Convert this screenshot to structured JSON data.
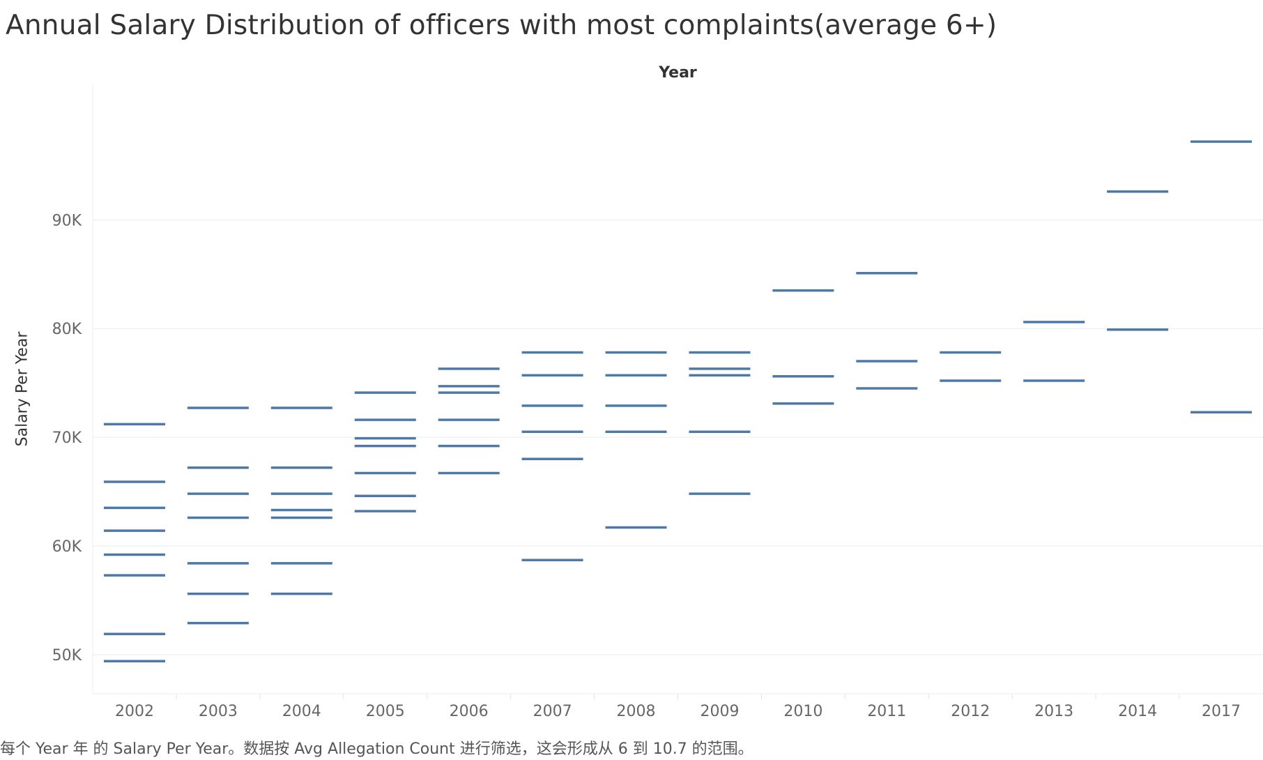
{
  "chart_data": {
    "type": "scatter",
    "mark": "horizontal dash",
    "title": "Annual Salary Distribution of officers with most complaints(average 6+)",
    "column_header": "Year",
    "ylabel": "Salary Per Year",
    "categories": [
      "2002",
      "2003",
      "2004",
      "2005",
      "2006",
      "2007",
      "2008",
      "2009",
      "2010",
      "2011",
      "2012",
      "2013",
      "2014",
      "2017"
    ],
    "y_ticks": [
      50000,
      60000,
      70000,
      80000,
      90000
    ],
    "y_tick_labels": [
      "50K",
      "60K",
      "70K",
      "80K",
      "90K"
    ],
    "ylim": [
      46400,
      102400
    ],
    "grid": true,
    "mark_color": "#4E79A7",
    "caption": "每个 Year 年 的 Salary Per Year。数据按 Avg Allegation Count 进行筛选，这会形成从 6 到 10.7 的范围。",
    "series": [
      {
        "year": "2002",
        "values": [
          71200,
          65900,
          63500,
          61400,
          59200,
          57300,
          51900,
          49400
        ]
      },
      {
        "year": "2003",
        "values": [
          72700,
          67200,
          64800,
          62600,
          58400,
          55600,
          52900
        ]
      },
      {
        "year": "2004",
        "values": [
          72700,
          67200,
          64800,
          63300,
          62600,
          58400,
          55600
        ]
      },
      {
        "year": "2005",
        "values": [
          74100,
          71600,
          69900,
          69200,
          66700,
          64600,
          63200
        ]
      },
      {
        "year": "2006",
        "values": [
          76300,
          74700,
          74100,
          71600,
          69200,
          66700
        ]
      },
      {
        "year": "2007",
        "values": [
          77800,
          75700,
          72900,
          70500,
          68000,
          58700
        ]
      },
      {
        "year": "2008",
        "values": [
          77800,
          75700,
          72900,
          70500,
          61700
        ]
      },
      {
        "year": "2009",
        "values": [
          77800,
          76300,
          75700,
          70500,
          64800
        ]
      },
      {
        "year": "2010",
        "values": [
          83500,
          75600,
          73100
        ]
      },
      {
        "year": "2011",
        "values": [
          85100,
          77000,
          74500
        ]
      },
      {
        "year": "2012",
        "values": [
          77800,
          75200
        ]
      },
      {
        "year": "2013",
        "values": [
          80600,
          75200
        ]
      },
      {
        "year": "2014",
        "values": [
          92600,
          79900
        ]
      },
      {
        "year": "2017",
        "values": [
          97200,
          72300
        ]
      }
    ]
  }
}
